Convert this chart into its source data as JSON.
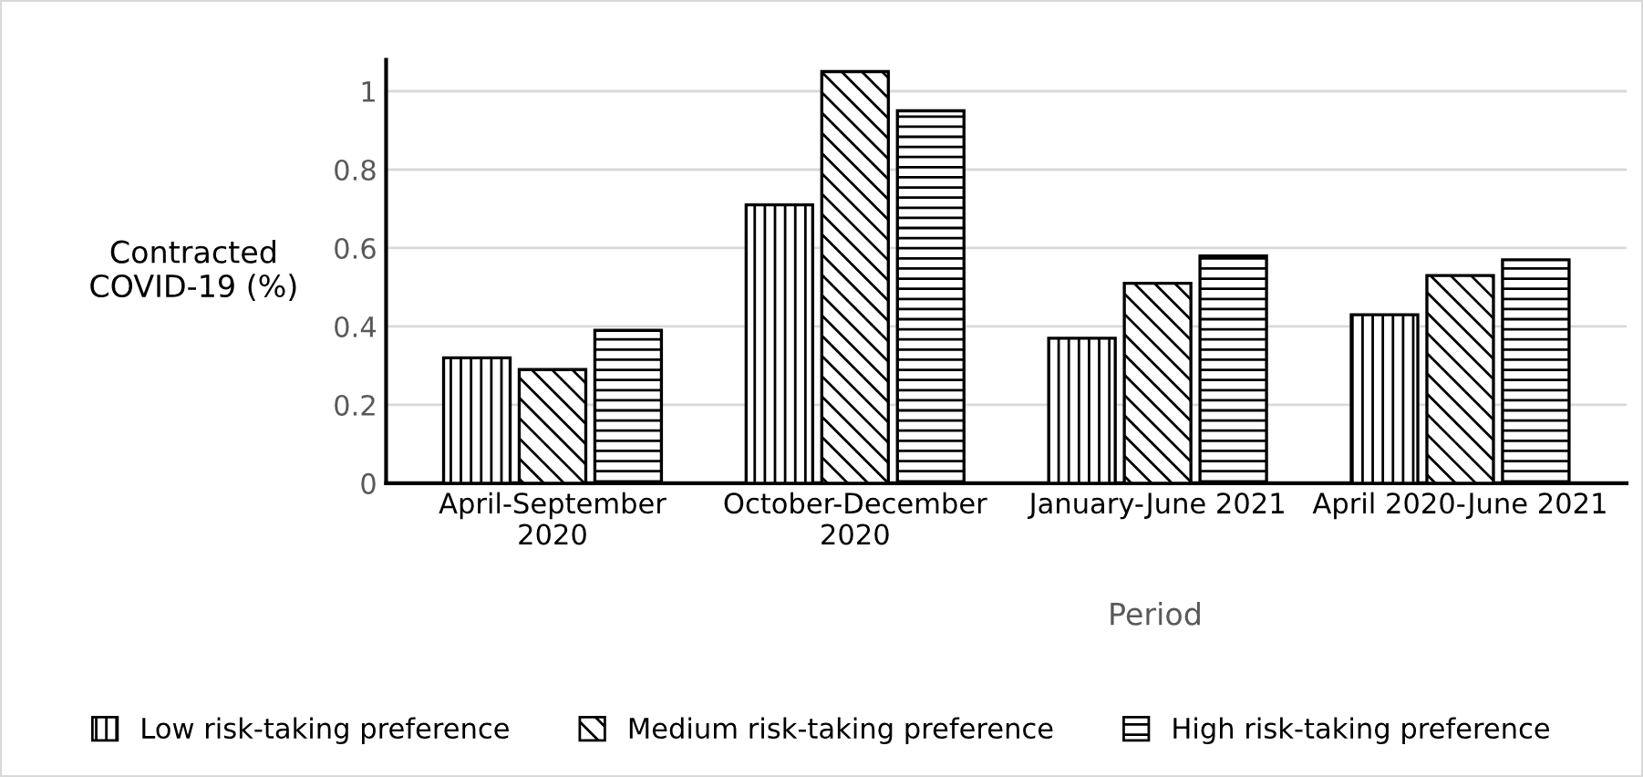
{
  "chart_data": {
    "type": "bar",
    "xlabel": "Period",
    "ylabel": "Contracted\nCOVID-19 (%)",
    "categories": [
      "April-September\n2020",
      "October-December\n2020",
      "January-June 2021",
      "April 2020-June 2021"
    ],
    "series": [
      {
        "name": "Low risk-taking preference",
        "color": "#000000",
        "values": [
          0.32,
          0.71,
          0.37,
          0.43
        ]
      },
      {
        "name": "Medium risk-taking preference",
        "color": "#000000",
        "values": [
          0.29,
          1.05,
          0.51,
          0.53
        ]
      },
      {
        "name": "High risk-taking preference",
        "color": "#000000",
        "values": [
          0.39,
          0.95,
          0.58,
          0.57
        ]
      }
    ],
    "ylim": [
      0,
      1.08
    ],
    "yticks": [
      0,
      0.2,
      0.4,
      0.6,
      0.8,
      1
    ],
    "grid": "y",
    "legend": "bottom"
  }
}
